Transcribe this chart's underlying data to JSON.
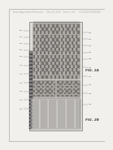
{
  "bg_color": "#f2f0ed",
  "header_color": "#b0aaa0",
  "device_color": "#d8d5d0",
  "grid_dark": "#6a6560",
  "grid_light": "#a8a5a0",
  "line_color": "#888480",
  "fig_label": "FIG. 2A",
  "fig_label2": "FIG. 2B",
  "header_text": "Patent Application Publication     May 22, 2014    Sheet 1 of 5      US 2014/0138260 A1"
}
